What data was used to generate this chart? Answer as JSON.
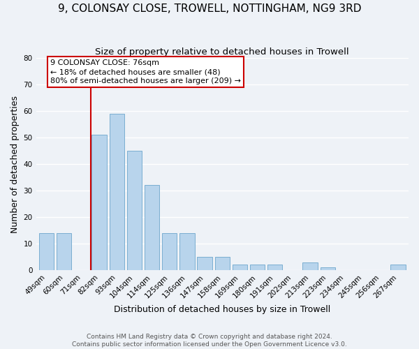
{
  "title": "9, COLONSAY CLOSE, TROWELL, NOTTINGHAM, NG9 3RD",
  "subtitle": "Size of property relative to detached houses in Trowell",
  "xlabel": "Distribution of detached houses by size in Trowell",
  "ylabel": "Number of detached properties",
  "bar_labels": [
    "49sqm",
    "60sqm",
    "71sqm",
    "82sqm",
    "93sqm",
    "104sqm",
    "114sqm",
    "125sqm",
    "136sqm",
    "147sqm",
    "158sqm",
    "169sqm",
    "180sqm",
    "191sqm",
    "202sqm",
    "213sqm",
    "223sqm",
    "234sqm",
    "245sqm",
    "256sqm",
    "267sqm"
  ],
  "bar_heights": [
    14,
    14,
    0,
    51,
    59,
    45,
    32,
    14,
    14,
    5,
    5,
    2,
    2,
    2,
    0,
    3,
    1,
    0,
    0,
    0,
    2
  ],
  "bar_color": "#b8d4ec",
  "bar_edge_color": "#7aaed0",
  "annotation_text": "9 COLONSAY CLOSE: 76sqm\n← 18% of detached houses are smaller (48)\n80% of semi-detached houses are larger (209) →",
  "annotation_box_color": "#ffffff",
  "annotation_box_edge_color": "#cc0000",
  "vline_color": "#cc0000",
  "ylim": [
    0,
    80
  ],
  "yticks": [
    0,
    10,
    20,
    30,
    40,
    50,
    60,
    70,
    80
  ],
  "footer_text": "Contains HM Land Registry data © Crown copyright and database right 2024.\nContains public sector information licensed under the Open Government Licence v3.0.",
  "background_color": "#eef2f7",
  "grid_color": "#ffffff",
  "title_fontsize": 11,
  "subtitle_fontsize": 9.5,
  "axis_label_fontsize": 9,
  "tick_fontsize": 7.5,
  "annotation_fontsize": 8,
  "footer_fontsize": 6.5
}
